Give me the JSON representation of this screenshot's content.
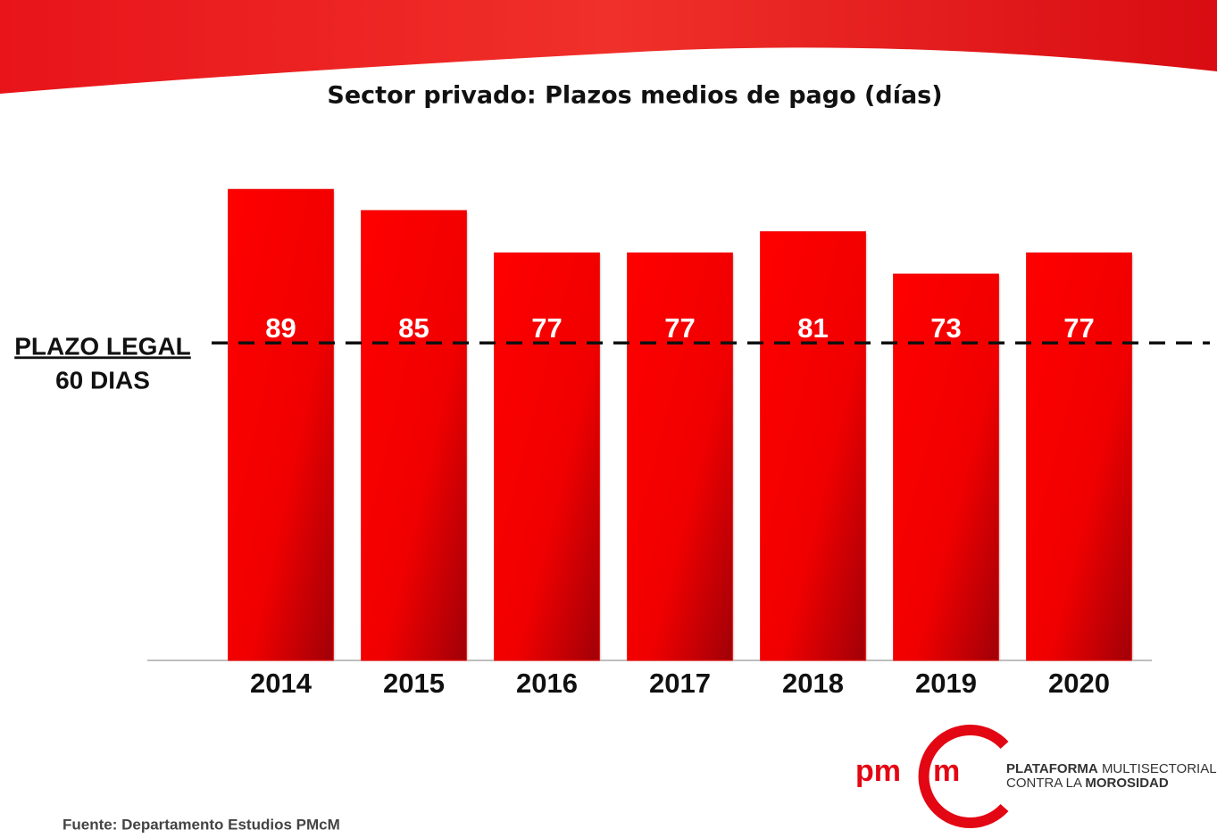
{
  "chart_data": {
    "type": "bar",
    "title": "Sector privado: Plazos medios de pago (días)",
    "categories": [
      "2014",
      "2015",
      "2016",
      "2017",
      "2018",
      "2019",
      "2020"
    ],
    "values": [
      89,
      85,
      77,
      77,
      81,
      73,
      77
    ],
    "color": "#ee0000",
    "ylim": [
      0,
      100
    ],
    "reference_line": {
      "value": 60,
      "labels": [
        "PLAZO LEGAL",
        "60 DIAS"
      ]
    }
  },
  "logo": {
    "mark": [
      "pm",
      "m"
    ],
    "line1": [
      "PLATAFORMA",
      "MULTISECTORIAL"
    ],
    "line2": [
      "CONTRA LA",
      "MOROSIDAD"
    ]
  },
  "source": "Fuente: Departamento Estudios PMcM"
}
